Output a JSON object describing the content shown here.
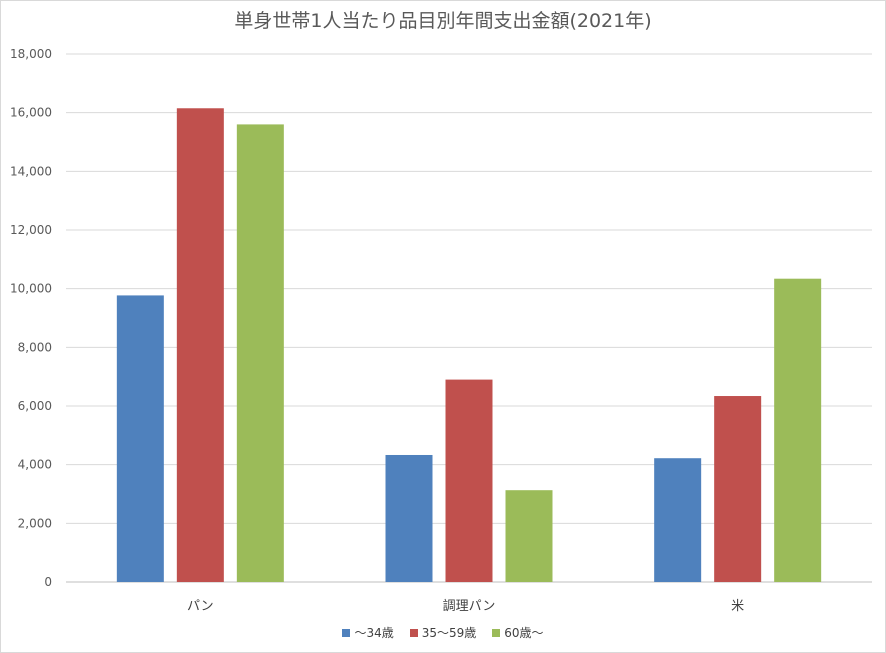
{
  "chart_data": {
    "type": "bar",
    "title": "単身世帯1人当たり品目別年間支出金額(2021年)",
    "categories": [
      "パン",
      "調理パン",
      "米"
    ],
    "series": [
      {
        "name": "〜34歳",
        "color": "#4f81bd",
        "values": [
          9770,
          4330,
          4220
        ]
      },
      {
        "name": "35〜59歳",
        "color": "#c0504d",
        "values": [
          16150,
          6900,
          6340
        ]
      },
      {
        "name": "60歳〜",
        "color": "#9bbb59",
        "values": [
          15600,
          3130,
          10340
        ]
      }
    ],
    "ylim": [
      0,
      18000
    ],
    "yticks": [
      0,
      2000,
      4000,
      6000,
      8000,
      10000,
      12000,
      14000,
      16000,
      18000
    ],
    "ytick_labels": [
      "0",
      "2,000",
      "4,000",
      "6,000",
      "8,000",
      "10,000",
      "12,000",
      "14,000",
      "16,000",
      "18,000"
    ],
    "grid": true,
    "legend": "bottom"
  }
}
